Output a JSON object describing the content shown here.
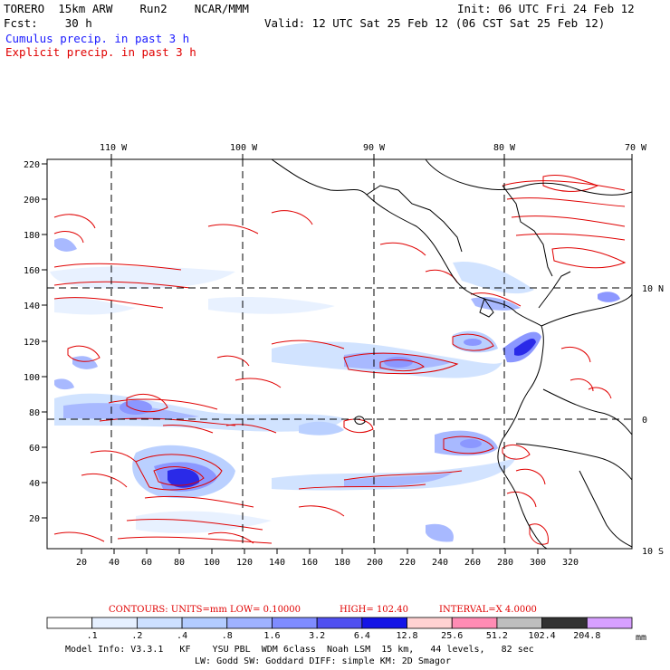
{
  "header": {
    "model": "TORERO  15km ARW    Run2    NCAR/MMM",
    "init": "Init: 06 UTC Fri 24 Feb 12",
    "fcst": "Fcst:    30 h",
    "valid": "Valid: 12 UTC Sat 25 Feb 12 (06 CST Sat 25 Feb 12)",
    "cumulus_label": "Cumulus precip. in past 3 h",
    "explicit_label": "Explicit precip. in past 3 h",
    "cumulus_color": "#1a1aff",
    "explicit_color": "#e00000"
  },
  "map": {
    "top_lon_labels": [
      "110 W",
      "100 W",
      "90 W",
      "80 W",
      "70 W"
    ],
    "right_lat_labels": [
      "10 N",
      "0",
      "10 S"
    ],
    "left_ticks": [
      "220",
      "200",
      "180",
      "160",
      "140",
      "120",
      "100",
      "80",
      "60",
      "40",
      "20"
    ],
    "bottom_ticks": [
      "20",
      "40",
      "60",
      "80",
      "100",
      "120",
      "140",
      "160",
      "180",
      "200",
      "220",
      "240",
      "260",
      "280",
      "300",
      "320"
    ]
  },
  "contours_info": {
    "prefix": "CONTOURS:  UNITS=mm  LOW= 0.10000",
    "high": "HIGH=  102.40",
    "interval": "INTERVAL=X  4.0000"
  },
  "colorbar": {
    "labels": [
      ".1",
      ".2",
      ".4",
      ".8",
      "1.6",
      "3.2",
      "6.4",
      "12.8",
      "25.6",
      "51.2",
      "102.4",
      "204.8"
    ],
    "unit": "mm",
    "colors": [
      "#ffffff",
      "#e6f0ff",
      "#cde0ff",
      "#b3ccff",
      "#9fb2ff",
      "#7f8cff",
      "#5050f0",
      "#1414e6",
      "#ffd2d2",
      "#ff8cb4",
      "#bebebe",
      "#323232",
      "#d7a0ff"
    ]
  },
  "footer": {
    "line1": "Model Info: V3.3.1   KF    YSU PBL  WDM 6class  Noah LSM  15 km,   44 levels,   82 sec",
    "line2": "LW: Godd SW: Goddard DIFF: simple KM: 2D Smagor"
  }
}
